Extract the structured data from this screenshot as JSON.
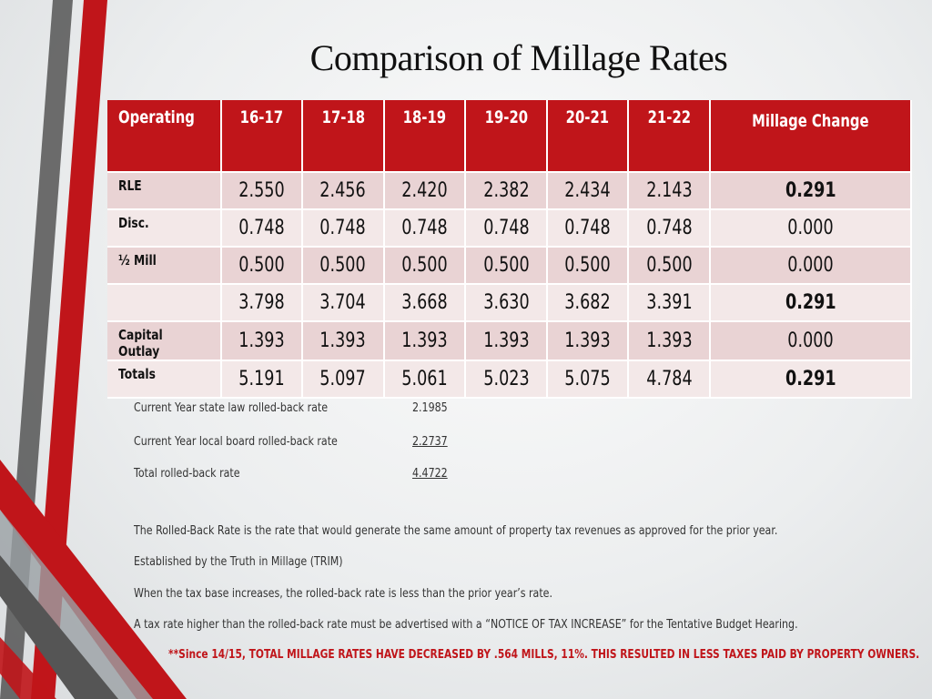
{
  "title": "Comparison of Millage Rates",
  "table": {
    "headers": [
      "Operating",
      "16-17",
      "17-18",
      "18-19",
      "19-20",
      "20-21",
      "21-22",
      "Millage Change"
    ],
    "rows": [
      {
        "label": "RLE",
        "values": [
          "2.550",
          "2.456",
          "2.420",
          "2.382",
          "2.434",
          "2.143"
        ],
        "change": "0.291",
        "change_bold": true
      },
      {
        "label": "Disc.",
        "values": [
          "0.748",
          "0.748",
          "0.748",
          "0.748",
          "0.748",
          "0.748"
        ],
        "change": "0.000",
        "change_bold": false
      },
      {
        "label": "½ Mill",
        "values": [
          "0.500",
          "0.500",
          "0.500",
          "0.500",
          "0.500",
          "0.500"
        ],
        "change": "0.000",
        "change_bold": false
      },
      {
        "label": "",
        "values": [
          "3.798",
          "3.704",
          "3.668",
          "3.630",
          "3.682",
          "3.391"
        ],
        "change": "0.291",
        "change_bold": true
      },
      {
        "label": "Capital Outlay",
        "values": [
          "1.393",
          "1.393",
          "1.393",
          "1.393",
          "1.393",
          "1.393"
        ],
        "change": "0.000",
        "change_bold": false
      },
      {
        "label": "Totals",
        "values": [
          "5.191",
          "5.097",
          "5.061",
          "5.023",
          "5.075",
          "4.784"
        ],
        "change": "0.291",
        "change_bold": true
      }
    ]
  },
  "rolled_back": [
    {
      "label": "Current Year state law rolled-back rate",
      "value": "2.1985",
      "underline": false
    },
    {
      "label": "Current Year local board rolled-back rate",
      "value": "2.2737",
      "underline": true
    },
    {
      "label": "Total rolled-back rate",
      "value": "4.4722",
      "underline": true
    }
  ],
  "notes": [
    "The Rolled-Back Rate is the rate that would generate the same amount of property tax revenues as approved for the prior year.",
    "Established by the Truth in Millage (TRIM)",
    "When the tax base increases, the rolled-back rate is less than the prior year’s rate.",
    "A tax rate higher than the rolled-back rate must be advertised with a “NOTICE OF TAX INCREASE” for the Tentative Budget Hearing."
  ],
  "footnote": "**Since 14/15, TOTAL MILLAGE RATES HAVE DECREASED BY .564 MILLS, 11%. THIS RESULTED IN LESS TAXES PAID BY PROPERTY OWNERS.",
  "colors": {
    "accent": "#c0151a",
    "row_dark": "#e9d3d4",
    "row_light": "#f3e8e8",
    "stripe_gray": "#5a5a5a"
  }
}
